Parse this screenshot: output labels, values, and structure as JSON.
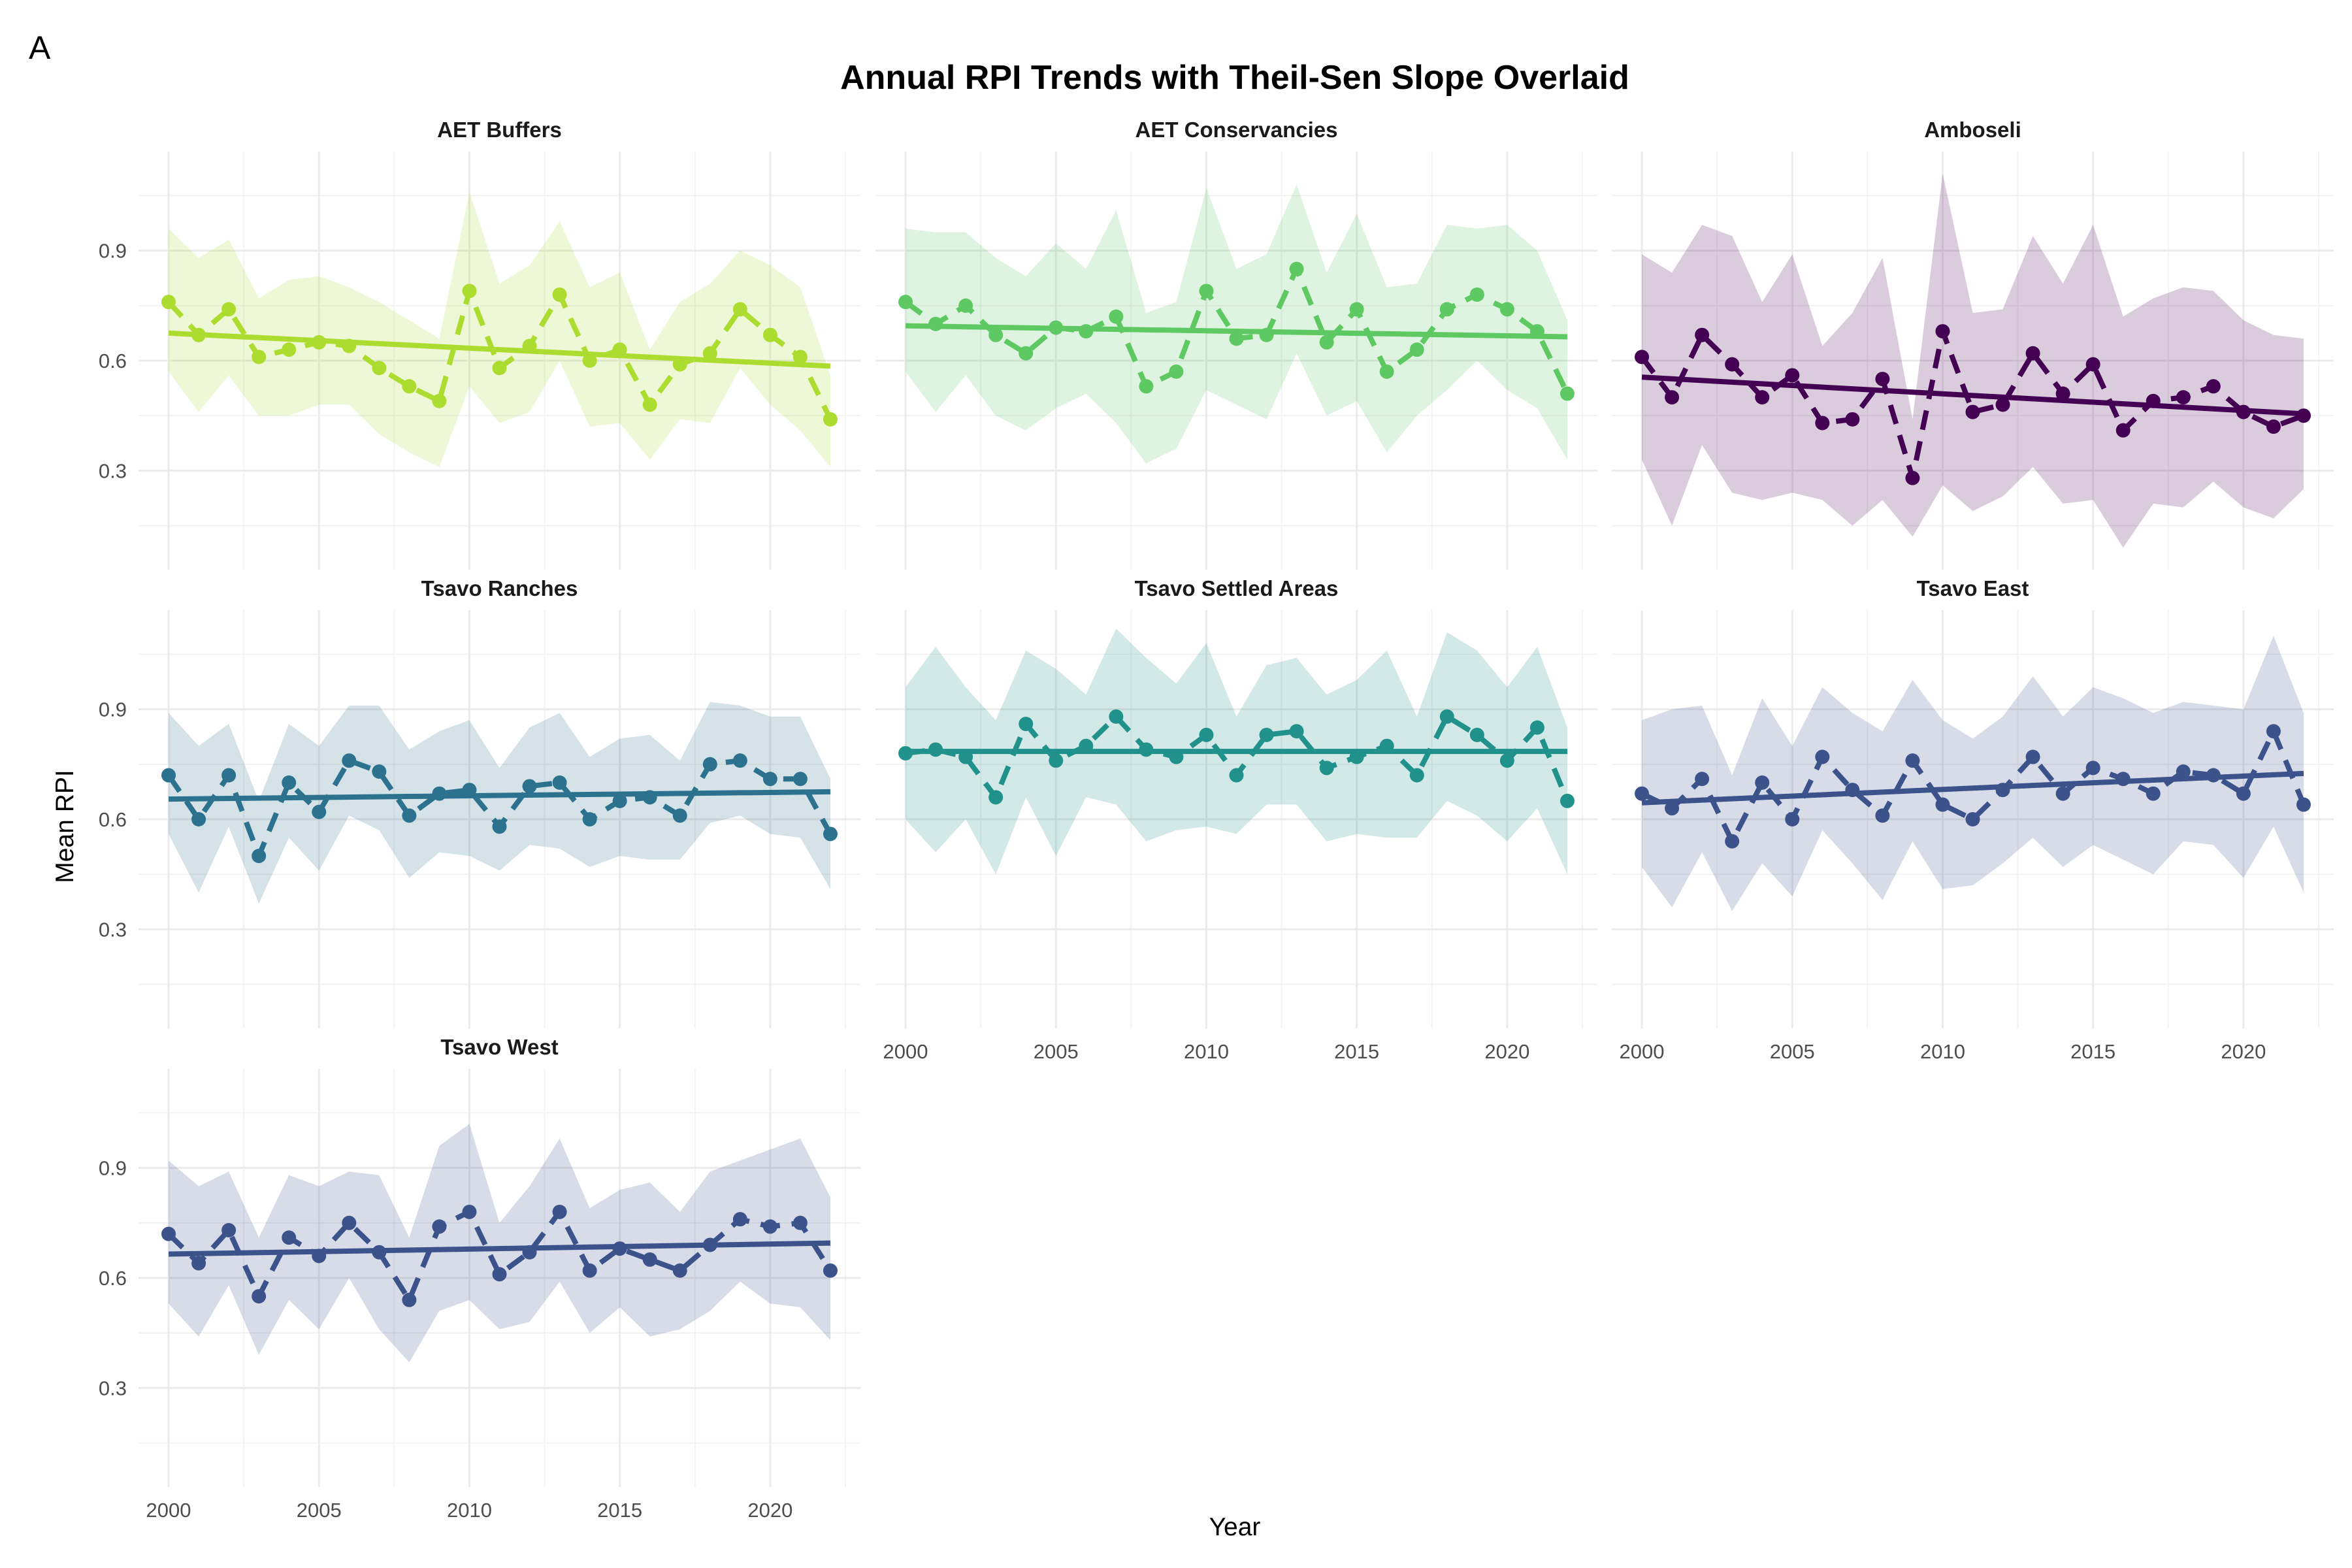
{
  "panel_tag": "A",
  "chart_data": {
    "type": "line",
    "title": "Annual RPI Trends with Theil-Sen Slope Overlaid",
    "xlabel": "Year",
    "ylabel": "Mean RPI",
    "xlim": [
      1999,
      2023
    ],
    "ylim": [
      0.03,
      1.17
    ],
    "x_ticks": [
      2000,
      2005,
      2010,
      2015,
      2020
    ],
    "y_ticks": [
      0.3,
      0.6,
      0.9
    ],
    "x_tick_labels": [
      "2000",
      "2005",
      "2010",
      "2015",
      "2020"
    ],
    "y_tick_labels": [
      "0.3",
      "0.6",
      "0.9"
    ],
    "grid": true,
    "legend": "none",
    "years": [
      2000,
      2001,
      2002,
      2003,
      2004,
      2005,
      2006,
      2007,
      2008,
      2009,
      2010,
      2011,
      2012,
      2013,
      2014,
      2015,
      2016,
      2017,
      2018,
      2019,
      2020,
      2021,
      2022
    ],
    "panels": [
      {
        "name": "AET Buffers",
        "color": "#addc30",
        "values": [
          0.76,
          0.67,
          0.74,
          0.61,
          0.63,
          0.65,
          0.64,
          0.58,
          0.53,
          0.49,
          0.79,
          0.58,
          0.64,
          0.78,
          0.6,
          0.63,
          0.48,
          0.59,
          0.62,
          0.74,
          0.67,
          0.61,
          0.44
        ],
        "upper": [
          0.96,
          0.88,
          0.93,
          0.77,
          0.82,
          0.83,
          0.8,
          0.76,
          0.71,
          0.66,
          1.06,
          0.81,
          0.86,
          0.98,
          0.8,
          0.84,
          0.63,
          0.76,
          0.81,
          0.9,
          0.86,
          0.8,
          0.56
        ],
        "lower": [
          0.57,
          0.46,
          0.56,
          0.45,
          0.45,
          0.48,
          0.48,
          0.4,
          0.35,
          0.31,
          0.53,
          0.43,
          0.46,
          0.6,
          0.42,
          0.43,
          0.33,
          0.44,
          0.43,
          0.58,
          0.48,
          0.41,
          0.31
        ],
        "trend": [
          0.675,
          0.585
        ]
      },
      {
        "name": "AET Conservancies",
        "color": "#5ec962",
        "values": [
          0.76,
          0.7,
          0.75,
          0.67,
          0.62,
          0.69,
          0.68,
          0.72,
          0.53,
          0.57,
          0.79,
          0.66,
          0.67,
          0.85,
          0.65,
          0.74,
          0.57,
          0.63,
          0.74,
          0.78,
          0.74,
          0.68,
          0.51
        ],
        "upper": [
          0.96,
          0.95,
          0.95,
          0.88,
          0.83,
          0.92,
          0.85,
          1.01,
          0.73,
          0.76,
          1.07,
          0.85,
          0.89,
          1.08,
          0.84,
          1.0,
          0.8,
          0.81,
          0.97,
          0.96,
          0.97,
          0.9,
          0.71
        ],
        "lower": [
          0.57,
          0.46,
          0.56,
          0.45,
          0.41,
          0.47,
          0.51,
          0.43,
          0.32,
          0.36,
          0.52,
          0.48,
          0.44,
          0.62,
          0.45,
          0.49,
          0.35,
          0.45,
          0.52,
          0.6,
          0.52,
          0.47,
          0.33
        ],
        "trend": [
          0.695,
          0.665
        ]
      },
      {
        "name": "Amboseli",
        "color": "#440154",
        "values": [
          0.61,
          0.5,
          0.67,
          0.59,
          0.5,
          0.56,
          0.43,
          0.44,
          0.55,
          0.28,
          0.68,
          0.46,
          0.48,
          0.62,
          0.51,
          0.59,
          0.41,
          0.49,
          0.5,
          0.53,
          0.46,
          0.42,
          0.45
        ],
        "upper": [
          0.89,
          0.84,
          0.97,
          0.94,
          0.76,
          0.89,
          0.64,
          0.73,
          0.88,
          0.44,
          1.11,
          0.73,
          0.74,
          0.94,
          0.81,
          0.97,
          0.72,
          0.77,
          0.8,
          0.79,
          0.71,
          0.67,
          0.66
        ],
        "lower": [
          0.33,
          0.15,
          0.37,
          0.24,
          0.22,
          0.24,
          0.22,
          0.15,
          0.22,
          0.12,
          0.26,
          0.19,
          0.23,
          0.31,
          0.21,
          0.22,
          0.09,
          0.21,
          0.2,
          0.27,
          0.2,
          0.17,
          0.25
        ],
        "trend": [
          0.555,
          0.455
        ]
      },
      {
        "name": "Tsavo Ranches",
        "color": "#2c728e",
        "values": [
          0.72,
          0.6,
          0.72,
          0.5,
          0.7,
          0.62,
          0.76,
          0.73,
          0.61,
          0.67,
          0.68,
          0.58,
          0.69,
          0.7,
          0.6,
          0.65,
          0.66,
          0.61,
          0.75,
          0.76,
          0.71,
          0.71,
          0.56
        ],
        "upper": [
          0.89,
          0.8,
          0.86,
          0.65,
          0.86,
          0.8,
          0.91,
          0.91,
          0.79,
          0.84,
          0.87,
          0.74,
          0.85,
          0.89,
          0.77,
          0.82,
          0.83,
          0.76,
          0.92,
          0.91,
          0.88,
          0.88,
          0.71
        ],
        "lower": [
          0.56,
          0.4,
          0.58,
          0.37,
          0.55,
          0.46,
          0.61,
          0.57,
          0.44,
          0.51,
          0.5,
          0.46,
          0.53,
          0.52,
          0.47,
          0.5,
          0.49,
          0.49,
          0.59,
          0.61,
          0.56,
          0.55,
          0.41
        ],
        "trend": [
          0.655,
          0.675
        ]
      },
      {
        "name": "Tsavo Settled Areas",
        "color": "#21918c",
        "values": [
          0.78,
          0.79,
          0.77,
          0.66,
          0.86,
          0.76,
          0.8,
          0.88,
          0.79,
          0.77,
          0.83,
          0.72,
          0.83,
          0.84,
          0.74,
          0.77,
          0.8,
          0.72,
          0.88,
          0.83,
          0.76,
          0.85,
          0.65
        ],
        "upper": [
          0.96,
          1.07,
          0.96,
          0.87,
          1.06,
          1.01,
          0.94,
          1.12,
          1.04,
          0.97,
          1.08,
          0.88,
          1.02,
          1.04,
          0.94,
          0.98,
          1.06,
          0.88,
          1.11,
          1.06,
          0.96,
          1.07,
          0.85
        ],
        "lower": [
          0.6,
          0.51,
          0.6,
          0.45,
          0.66,
          0.5,
          0.66,
          0.64,
          0.54,
          0.57,
          0.58,
          0.56,
          0.64,
          0.64,
          0.54,
          0.56,
          0.55,
          0.55,
          0.65,
          0.61,
          0.54,
          0.63,
          0.45
        ],
        "trend": [
          0.785,
          0.785
        ]
      },
      {
        "name": "Tsavo East",
        "color": "#3b528b",
        "values": [
          0.67,
          0.63,
          0.71,
          0.54,
          0.7,
          0.6,
          0.77,
          0.68,
          0.61,
          0.76,
          0.64,
          0.6,
          0.68,
          0.77,
          0.67,
          0.74,
          0.71,
          0.67,
          0.73,
          0.72,
          0.67,
          0.84,
          0.64
        ],
        "upper": [
          0.87,
          0.9,
          0.91,
          0.72,
          0.93,
          0.8,
          0.96,
          0.89,
          0.84,
          0.98,
          0.87,
          0.82,
          0.88,
          0.99,
          0.88,
          0.96,
          0.93,
          0.89,
          0.92,
          0.91,
          0.9,
          1.1,
          0.89
        ],
        "lower": [
          0.47,
          0.36,
          0.51,
          0.35,
          0.48,
          0.39,
          0.57,
          0.48,
          0.38,
          0.54,
          0.41,
          0.42,
          0.48,
          0.55,
          0.47,
          0.53,
          0.49,
          0.45,
          0.54,
          0.53,
          0.44,
          0.58,
          0.4
        ],
        "trend": [
          0.645,
          0.725
        ]
      },
      {
        "name": "Tsavo West",
        "color": "#3b528b",
        "values": [
          0.72,
          0.64,
          0.73,
          0.55,
          0.71,
          0.66,
          0.75,
          0.67,
          0.54,
          0.74,
          0.78,
          0.61,
          0.67,
          0.78,
          0.62,
          0.68,
          0.65,
          0.62,
          0.69,
          0.76,
          0.74,
          0.75,
          0.62
        ],
        "upper": [
          0.92,
          0.85,
          0.89,
          0.71,
          0.88,
          0.85,
          0.89,
          0.88,
          0.71,
          0.96,
          1.02,
          0.75,
          0.85,
          0.98,
          0.79,
          0.84,
          0.86,
          0.78,
          0.89,
          0.92,
          0.95,
          0.98,
          0.82
        ],
        "lower": [
          0.53,
          0.44,
          0.58,
          0.39,
          0.54,
          0.46,
          0.6,
          0.46,
          0.37,
          0.51,
          0.54,
          0.46,
          0.48,
          0.59,
          0.45,
          0.52,
          0.44,
          0.46,
          0.51,
          0.59,
          0.53,
          0.52,
          0.43
        ],
        "trend": [
          0.665,
          0.695
        ]
      }
    ]
  }
}
